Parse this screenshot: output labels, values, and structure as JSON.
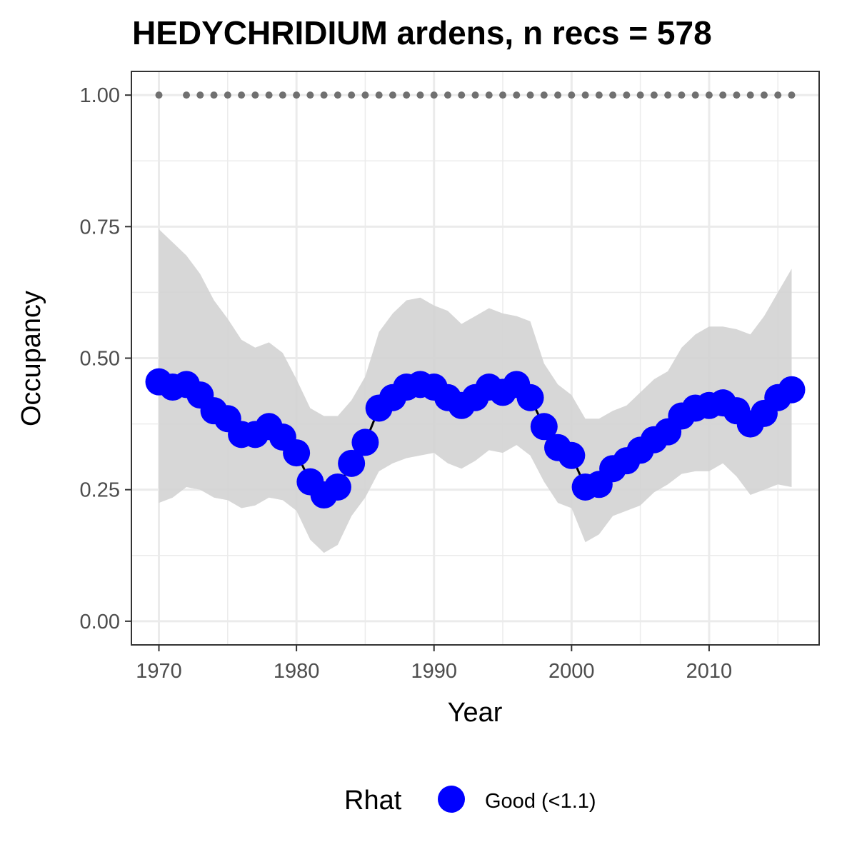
{
  "chart_data": {
    "type": "line",
    "title": "HEDYCHRIDIUM ardens, n recs = 578",
    "xlabel": "Year",
    "ylabel": "Occupancy",
    "xlim": [
      1968,
      2018
    ],
    "ylim": [
      -0.045,
      1.045
    ],
    "x_ticks": [
      1970,
      1980,
      1990,
      2000,
      2010
    ],
    "y_ticks": [
      0,
      0.25,
      0.5,
      0.75,
      1.0
    ],
    "y_tick_labels": [
      "0.00",
      "0.25",
      "0.50",
      "0.75",
      "1.00"
    ],
    "grid": true,
    "colors": {
      "points": "#0000ff",
      "line": "#000000",
      "ribbon": "#d3d3d3",
      "detection_dots": "#707070",
      "grid": "#ebebeb",
      "panel_border": "#333333"
    },
    "x": [
      1970,
      1971,
      1972,
      1973,
      1974,
      1975,
      1976,
      1977,
      1978,
      1979,
      1980,
      1981,
      1982,
      1983,
      1984,
      1985,
      1986,
      1987,
      1988,
      1989,
      1990,
      1991,
      1992,
      1993,
      1994,
      1995,
      1996,
      1997,
      1998,
      1999,
      2000,
      2001,
      2002,
      2003,
      2004,
      2005,
      2006,
      2007,
      2008,
      2009,
      2010,
      2011,
      2012,
      2013,
      2014,
      2015,
      2016
    ],
    "series": [
      {
        "name": "Occupancy",
        "values": [
          0.455,
          0.445,
          0.45,
          0.43,
          0.4,
          0.385,
          0.355,
          0.355,
          0.37,
          0.35,
          0.32,
          0.265,
          0.24,
          0.255,
          0.3,
          0.34,
          0.405,
          0.425,
          0.445,
          0.45,
          0.445,
          0.425,
          0.41,
          0.425,
          0.445,
          0.435,
          0.45,
          0.425,
          0.37,
          0.33,
          0.315,
          0.255,
          0.26,
          0.29,
          0.305,
          0.325,
          0.345,
          0.36,
          0.39,
          0.405,
          0.41,
          0.415,
          0.4,
          0.375,
          0.395,
          0.425,
          0.44
        ],
        "lower": [
          0.225,
          0.235,
          0.255,
          0.25,
          0.235,
          0.23,
          0.215,
          0.22,
          0.235,
          0.23,
          0.21,
          0.155,
          0.13,
          0.145,
          0.2,
          0.235,
          0.285,
          0.3,
          0.31,
          0.315,
          0.32,
          0.3,
          0.29,
          0.305,
          0.325,
          0.32,
          0.335,
          0.315,
          0.265,
          0.225,
          0.215,
          0.15,
          0.165,
          0.2,
          0.21,
          0.22,
          0.245,
          0.26,
          0.28,
          0.285,
          0.285,
          0.3,
          0.275,
          0.24,
          0.25,
          0.26,
          0.255
        ],
        "upper": [
          0.745,
          0.72,
          0.695,
          0.66,
          0.61,
          0.575,
          0.535,
          0.52,
          0.53,
          0.51,
          0.46,
          0.405,
          0.39,
          0.39,
          0.42,
          0.465,
          0.55,
          0.585,
          0.61,
          0.615,
          0.6,
          0.59,
          0.565,
          0.58,
          0.595,
          0.585,
          0.58,
          0.57,
          0.49,
          0.45,
          0.43,
          0.385,
          0.385,
          0.4,
          0.41,
          0.435,
          0.46,
          0.475,
          0.52,
          0.545,
          0.56,
          0.56,
          0.555,
          0.545,
          0.58,
          0.625,
          0.67
        ]
      }
    ],
    "detection_points": {
      "y": 1.0,
      "x": [
        1970,
        1972,
        1973,
        1974,
        1975,
        1976,
        1977,
        1978,
        1979,
        1980,
        1981,
        1982,
        1983,
        1984,
        1985,
        1986,
        1987,
        1988,
        1989,
        1990,
        1991,
        1992,
        1993,
        1994,
        1995,
        1996,
        1997,
        1998,
        1999,
        2000,
        2001,
        2002,
        2003,
        2004,
        2005,
        2006,
        2007,
        2008,
        2009,
        2010,
        2011,
        2012,
        2013,
        2014,
        2015,
        2016
      ]
    },
    "legend": {
      "title": "Rhat",
      "items": [
        {
          "label": "Good (<1.1)",
          "color": "#0000ff"
        }
      ],
      "position": "bottom"
    }
  }
}
